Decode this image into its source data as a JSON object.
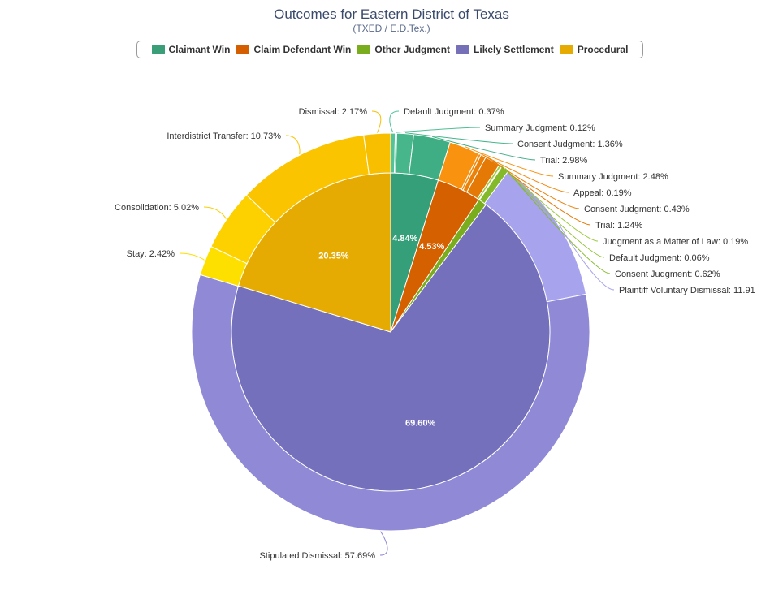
{
  "title": "Outcomes for Eastern District of Texas",
  "subtitle": "(TXED / E.D.Tex.)",
  "chart_data": {
    "type": "pie",
    "variant": "nested-donut",
    "legend": [
      {
        "name": "Claimant Win",
        "color": "#3a9e78"
      },
      {
        "name": "Claim Defendant Win",
        "color": "#d55e00"
      },
      {
        "name": "Other Judgment",
        "color": "#7aad1e"
      },
      {
        "name": "Likely Settlement",
        "color": "#7570b8"
      },
      {
        "name": "Procedural",
        "color": "#e6ab02"
      }
    ],
    "inner": [
      {
        "category": "Claimant Win",
        "value": 4.84,
        "label": "4.84%",
        "color": "#349f78"
      },
      {
        "category": "Claim Defendant Win",
        "value": 4.53,
        "label": "4.53%",
        "color": "#d56000"
      },
      {
        "category": "Other Judgment",
        "value": 0.87,
        "label": "",
        "color": "#7aad1e"
      },
      {
        "category": "Likely Settlement",
        "value": 69.6,
        "label": "69.60%",
        "color": "#7570bb"
      },
      {
        "category": "Procedural",
        "value": 20.35,
        "label": "20.35%",
        "color": "#e6ab02"
      }
    ],
    "outer": [
      {
        "name": "Default Judgment",
        "value": 0.37,
        "label": "Default Judgment: 0.37%",
        "color": "#52c49a"
      },
      {
        "name": "Summary Judgment",
        "value": 0.12,
        "label": "Summary Judgment: 0.12%",
        "color": "#4fbe94"
      },
      {
        "name": "Consent Judgment",
        "value": 1.36,
        "label": "Consent Judgment: 1.36%",
        "color": "#47b68b"
      },
      {
        "name": "Trial",
        "value": 2.98,
        "label": "Trial: 2.98%",
        "color": "#3fae84"
      },
      {
        "name": "Summary Judgment",
        "value": 2.48,
        "label": "Summary Judgment: 2.48%",
        "color": "#f9920f"
      },
      {
        "name": "Appeal",
        "value": 0.19,
        "label": "Appeal: 0.19%",
        "color": "#f28a0c"
      },
      {
        "name": "Consent Judgment",
        "value": 0.43,
        "label": "Consent Judgment: 0.43%",
        "color": "#eb8108"
      },
      {
        "name": "Trial",
        "value": 1.24,
        "label": "Trial: 1.24%",
        "color": "#e47905"
      },
      {
        "name": "Judgment as a Matter of Law",
        "value": 0.19,
        "label": "Judgment as a Matter of Law: 0.19%",
        "color": "#9bcb3c"
      },
      {
        "name": "Default Judgment",
        "value": 0.06,
        "label": "Default Judgment: 0.06%",
        "color": "#8fc233"
      },
      {
        "name": "Consent Judgment",
        "value": 0.62,
        "label": "Consent Judgment: 0.62%",
        "color": "#84b92a"
      },
      {
        "name": "Plaintiff Voluntary Dismissal",
        "value": 11.91,
        "label": "Plaintiff Voluntary Dismissal: 11.91",
        "color": "#a7a3ec"
      },
      {
        "name": "Stipulated Dismissal",
        "value": 57.69,
        "label": "Stipulated Dismissal: 57.69%",
        "color": "#8f89d6"
      },
      {
        "name": "Stay",
        "value": 2.42,
        "label": "Stay: 2.42%",
        "color": "#fde000"
      },
      {
        "name": "Consolidation",
        "value": 5.02,
        "label": "Consolidation: 5.02%",
        "color": "#fdd000"
      },
      {
        "name": "Interdistrict Transfer",
        "value": 10.73,
        "label": "Interdistrict Transfer: 10.73%",
        "color": "#fbc400"
      },
      {
        "name": "Dismissal",
        "value": 2.17,
        "label": "Dismissal: 2.17%",
        "color": "#f8bf00"
      }
    ]
  }
}
